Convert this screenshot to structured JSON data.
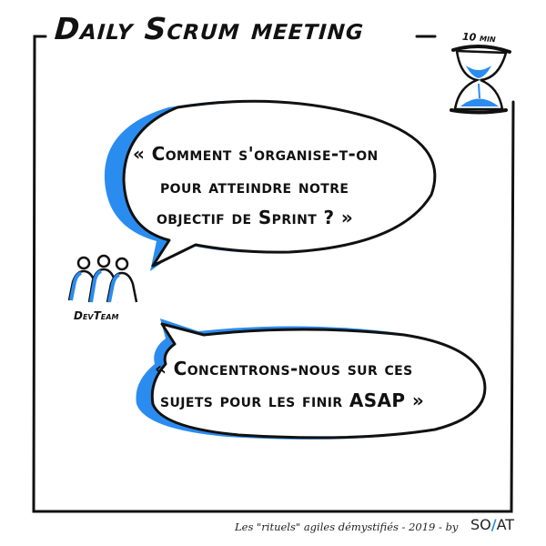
{
  "header": {
    "title": "Daily Scrum meeting",
    "timer_label": "10 min"
  },
  "bubble_top": {
    "lines": [
      "« Comment s'organise-t-on",
      "pour atteindre notre",
      "objectif de Sprint ? »"
    ]
  },
  "bubble_bottom": {
    "lines": [
      "« Concentrons-nous sur ces",
      "sujets pour les finir ASAP »"
    ]
  },
  "team": {
    "label": "DevTeam",
    "icon": "team-icon"
  },
  "footer": {
    "text": "Les \"rituels\" agiles démystifiés - 2019 - by",
    "logo_left": "SO",
    "logo_slash": "/",
    "logo_right": "AT"
  },
  "colors": {
    "accent": "#2b8cf0",
    "ink": "#111111"
  }
}
